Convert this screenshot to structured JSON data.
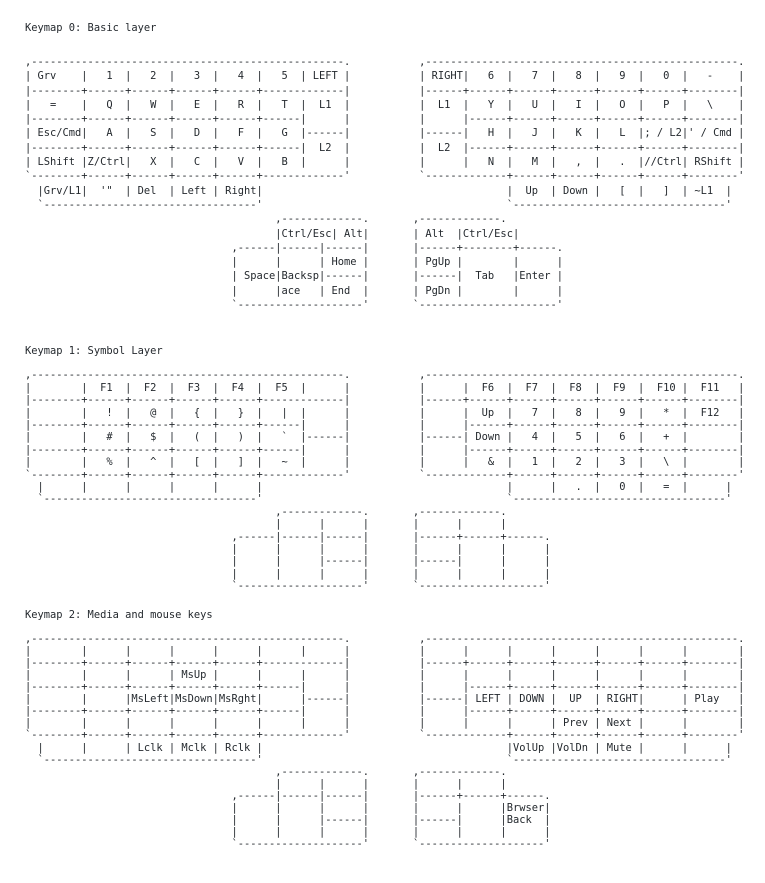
{
  "document": {
    "text_color": "#24292e",
    "background_color": "#ffffff"
  },
  "sections": [
    {
      "title": "Keymap 0: Basic layer",
      "ascii_art": ",--------------------------------------------------.           ,--------------------------------------------------.\n| Grv    |   1  |   2  |   3  |   4  |   5  | LEFT |           | RIGHT|   6  |   7  |   8  |   9  |   0  |   -    |\n|--------+------+------+------+------+-------------|           |------+------+------+------+------+------+--------|\n|   =    |   Q  |   W  |   E  |   R  |   T  |  L1  |           |  L1  |   Y  |   U  |   I  |   O  |   P  |   \\    |\n|--------+------+------+------+------+------|      |           |      |------+------+------+------+------+--------|\n| Esc/Cmd|   A  |   S  |   D  |   F  |   G  |------|           |------|   H  |   J  |   K  |   L  |; / L2|' / Cmd |\n|--------+------+------+------+------+------|  L2  |           |  L2  |------+------+------+------+------+--------|\n| LShift |Z/Ctrl|   X  |   C  |   V  |   B  |      |           |      |   N  |   M  |   ,  |   .  |//Ctrl| RShift |\n`--------+------+------+------+------+-------------'           `-------------+------+------+------+------+--------'\n  |Grv/L1|  '\"  | Del  | Left | Right|                                       |  Up  | Down |   [  |   ]  | ~L1  |\n  `----------------------------------'                                       `----------------------------------'\n                                        ,-------------.       ,-------------.\n                                        |Ctrl/Esc| Alt|       | Alt  |Ctrl/Esc|\n                                 ,------|------|------|       |------+--------+------.\n                                 |      |      | Home |       | PgUp |        |      |\n                                 | Space|Backsp|------|       |------|  Tab   |Enter |\n                                 |      |ace   | End  |       | PgDn |        |      |\n                                 `--------------------'       `----------------------'"
    },
    {
      "title": "Keymap 1: Symbol Layer",
      "ascii_art": ",--------------------------------------------------.           ,--------------------------------------------------.\n|        |  F1  |  F2  |  F3  |  F4  |  F5  |      |           |      |  F6  |  F7  |  F8  |  F9  |  F10 |  F11   |\n|--------+------+------+------+------+-------------|           |------+------+------+------+------+------+--------|\n|        |   !  |   @  |   {  |   }  |   |  |      |           |      |  Up  |   7  |   8  |   9  |   *  |  F12   |\n|--------+------+------+------+------+------|      |           |      |------+------+------+------+------+--------|\n|        |   #  |   $  |   (  |   )  |   `  |------|           |------| Down |   4  |   5  |   6  |   +  |        |\n|--------+------+------+------+------+------|      |           |      |------+------+------+------+------+--------|\n|        |   %  |   ^  |   [  |   ]  |   ~  |      |           |      |   &  |   1  |   2  |   3  |   \\  |        |\n`--------+------+------+------+------+-------------'           `-------------+------+------+------+------+--------'\n  |      |      |      |      |      |                                       |      |   .  |   0  |   =  |      |\n  `----------------------------------'                                       `----------------------------------'\n                                        ,-------------.       ,-------------.\n                                        |      |      |       |      |      |\n                                 ,------|------|------|       |------+------+------.\n                                 |      |      |      |       |      |      |      |\n                                 |      |      |------|       |------|      |      |\n                                 |      |      |      |       |      |      |      |\n                                 `--------------------'       `--------------------'"
    },
    {
      "title": "Keymap 2: Media and mouse keys",
      "ascii_art": ",--------------------------------------------------.           ,--------------------------------------------------.\n|        |      |      |      |      |      |      |           |      |      |      |      |      |      |        |\n|--------+------+------+------+------+-------------|           |------+------+------+------+------+------+--------|\n|        |      |      | MsUp |      |      |      |           |      |      |      |      |      |      |        |\n|--------+------+------+------+------+------|      |           |      |------+------+------+------+------+--------|\n|        |      |MsLeft|MsDown|MsRght|      |------|           |------| LEFT | DOWN |  UP  | RIGHT|      | Play   |\n|--------+------+------+------+------+------|      |           |      |------+------+------+------+------+--------|\n|        |      |      |      |      |      |      |           |      |      |      | Prev | Next |      |        |\n`--------+------+------+------+------+-------------'           `-------------+------+------+------+------+--------'\n  |      |      | Lclk | Mclk | Rclk |                                       |VolUp |VolDn | Mute |      |      |\n  `----------------------------------'                                       `----------------------------------'\n                                        ,-------------.       ,-------------.\n                                        |      |      |       |      |      |\n                                 ,------|------|------|       |------+------+------.\n                                 |      |      |      |       |      |      |Brwser|\n                                 |      |      |------|       |------|      |Back  |\n                                 |      |      |      |       |      |      |      |\n                                 `--------------------'       `--------------------'"
    }
  ]
}
